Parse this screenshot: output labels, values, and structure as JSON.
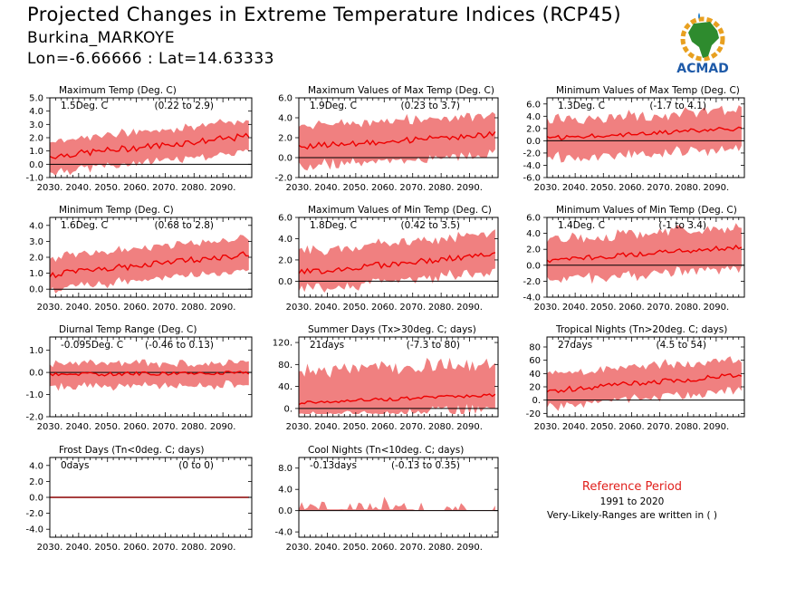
{
  "header": {
    "title": "Projected Changes in Extreme Temperature Indices (RCP45)",
    "station": "Burkina_MARKOYE",
    "coords": "Lon=-6.66666 : Lat=14.63333"
  },
  "logo": {
    "text": "ACMAD",
    "icon": "africa-map-logo-icon"
  },
  "reference": {
    "title": "Reference Period",
    "years": "1991 to 2020",
    "note": "Very-Likely-Ranges are written in ( )"
  },
  "colors": {
    "band": "#f08080",
    "line": "#ee0000",
    "zero": "#000000",
    "frost_line": "#8b0000",
    "ref_title": "#e0201c"
  },
  "chart_data": [
    {
      "type": "area",
      "title": "Maximum Temp (Deg. C)",
      "value_label": "1.5Deg. C",
      "range_label": "(0.22 to 2.9)",
      "x": [
        2030,
        2100
      ],
      "ylim": [
        -1.0,
        5.0
      ],
      "yticks": [
        -1,
        0,
        1,
        2,
        3,
        4,
        5
      ],
      "ytick_labels": [
        "-1.0",
        "0.0",
        "1.0",
        "2.0",
        "3.0",
        "4.0",
        "5.0"
      ],
      "trend_start": 0.6,
      "trend_end": 2.1,
      "noise": 0.25,
      "band_low": 1.0,
      "band_high": 1.0,
      "band_noise": 0.35,
      "floor": null
    },
    {
      "type": "area",
      "title": "Maximum Values of Max Temp (Deg. C)",
      "value_label": "1.9Deg. C",
      "range_label": "(0.23 to 3.7)",
      "x": [
        2030,
        2100
      ],
      "ylim": [
        -2.0,
        6.0
      ],
      "yticks": [
        -2,
        0,
        2,
        4,
        6
      ],
      "ytick_labels": [
        "-2.0",
        "0.0",
        "2.0",
        "4.0",
        "6.0"
      ],
      "trend_start": 1.1,
      "trend_end": 2.3,
      "noise": 0.3,
      "band_low": 1.6,
      "band_high": 1.6,
      "band_noise": 0.8,
      "floor": null
    },
    {
      "type": "area",
      "title": "Minimum Values of Max Temp (Deg. C)",
      "value_label": "1.3Deg. C",
      "range_label": "(-1.7 to 4.1)",
      "x": [
        2030,
        2100
      ],
      "ylim": [
        -6.0,
        7.0
      ],
      "yticks": [
        -6,
        -4,
        -2,
        0,
        2,
        4,
        6
      ],
      "ytick_labels": [
        "-6.0",
        "-4.0",
        "-2.0",
        "0.0",
        "2.0",
        "4.0",
        "6.0"
      ],
      "trend_start": 0.4,
      "trend_end": 2.0,
      "noise": 0.35,
      "band_low": 2.5,
      "band_high": 2.2,
      "band_noise": 1.6,
      "floor": null
    },
    {
      "type": "area",
      "title": "Minimum Temp (Deg. C)",
      "value_label": "1.6Deg. C",
      "range_label": "(0.68 to 2.8)",
      "x": [
        2030,
        2100
      ],
      "ylim": [
        -0.5,
        4.5
      ],
      "yticks": [
        0,
        1,
        2,
        3,
        4
      ],
      "ytick_labels": [
        "0.0",
        "1.0",
        "2.0",
        "3.0",
        "4.0"
      ],
      "trend_start": 0.9,
      "trend_end": 2.2,
      "noise": 0.2,
      "band_low": 0.8,
      "band_high": 0.9,
      "band_noise": 0.3,
      "floor": null
    },
    {
      "type": "area",
      "title": "Maximum Values of Min Temp (Deg. C)",
      "value_label": "1.8Deg. C",
      "range_label": "(0.42 to 3.5)",
      "x": [
        2030,
        2100
      ],
      "ylim": [
        -1.5,
        6.0
      ],
      "yticks": [
        0,
        2,
        4,
        6
      ],
      "ytick_labels": [
        "0.0",
        "2.0",
        "4.0",
        "6.0"
      ],
      "trend_start": 0.8,
      "trend_end": 2.5,
      "noise": 0.3,
      "band_low": 1.3,
      "band_high": 1.6,
      "band_noise": 0.7,
      "floor": null
    },
    {
      "type": "area",
      "title": "Minimum Values of Min Temp (Deg. C)",
      "value_label": "1.4Deg. C",
      "range_label": "(-1 to 3.4)",
      "x": [
        2030,
        2100
      ],
      "ylim": [
        -4.0,
        6.0
      ],
      "yticks": [
        -4,
        -2,
        0,
        2,
        4,
        6
      ],
      "ytick_labels": [
        "-4.0",
        "-2.0",
        "0.0",
        "2.0",
        "4.0",
        "6.0"
      ],
      "trend_start": 0.6,
      "trend_end": 2.3,
      "noise": 0.3,
      "band_low": 2.0,
      "band_high": 2.0,
      "band_noise": 1.1,
      "floor": null
    },
    {
      "type": "area",
      "title": "Diurnal Temp Range (Deg. C)",
      "value_label": "-0.095Deg. C",
      "range_label": "(-0.46 to 0.13)",
      "x": [
        2030,
        2100
      ],
      "ylim": [
        -2.0,
        1.6
      ],
      "yticks": [
        -2,
        -1,
        0,
        1
      ],
      "ytick_labels": [
        "-2.0",
        "-1.0",
        "0.0",
        "1.0"
      ],
      "trend_start": -0.1,
      "trend_end": 0.0,
      "noise": 0.08,
      "band_low": 0.4,
      "band_high": 0.3,
      "band_noise": 0.3,
      "floor": null
    },
    {
      "type": "area",
      "title": "Summer Days (Tx>30deg. C; days)",
      "value_label": "21days",
      "range_label": "(-7.3 to 80)",
      "x": [
        2030,
        2100
      ],
      "ylim": [
        -15,
        130
      ],
      "yticks": [
        0,
        40,
        80,
        120
      ],
      "ytick_labels": [
        "0.",
        "40.",
        "80.",
        "120."
      ],
      "trend_start": 10,
      "trend_end": 25,
      "noise": 3,
      "band_low": 15,
      "band_high": 45,
      "band_noise": 25,
      "floor": -10
    },
    {
      "type": "area",
      "title": "Tropical Nights (Tn>20deg. C; days)",
      "value_label": "27days",
      "range_label": "(4.5 to 54)",
      "x": [
        2030,
        2100
      ],
      "ylim": [
        -25,
        95
      ],
      "yticks": [
        -20,
        0,
        20,
        40,
        60,
        80
      ],
      "ytick_labels": [
        "-20",
        "0.",
        "20",
        "40",
        "60",
        "80"
      ],
      "trend_start": 14,
      "trend_end": 38,
      "noise": 4,
      "band_low": 18,
      "band_high": 20,
      "band_noise": 10,
      "floor": null
    },
    {
      "type": "area",
      "title": "Frost Days (Tn<0deg. C; days)",
      "value_label": "0days",
      "range_label": "(0 to 0)",
      "x": [
        2030,
        2100
      ],
      "ylim": [
        -5.0,
        5.0
      ],
      "yticks": [
        -4,
        -2,
        0,
        2,
        4
      ],
      "ytick_labels": [
        "-4.0",
        "-2.0",
        "0.0",
        "2.0",
        "4.0"
      ],
      "trend_start": 0,
      "trend_end": 0,
      "noise": 0,
      "band_low": 0,
      "band_high": 0,
      "band_noise": 0,
      "floor": null
    },
    {
      "type": "area",
      "title": "Cool Nights (Tn<10deg. C; days)",
      "value_label": "-0.13days",
      "range_label": "(-0.13 to 0.35)",
      "x": [
        2030,
        2100
      ],
      "ylim": [
        -5.0,
        10.0
      ],
      "yticks": [
        -4,
        0,
        4,
        8
      ],
      "ytick_labels": [
        "-4.0",
        "0.0",
        "4.0",
        "8.0"
      ],
      "trend_start": -0.1,
      "trend_end": -0.1,
      "noise": 0.02,
      "band_low": 0.1,
      "band_high": 0.3,
      "band_noise": 0.4,
      "floor": null,
      "sparse": true
    }
  ],
  "xtick_labels": [
    "2030.",
    "2040.",
    "2050.",
    "2060.",
    "2070.",
    "2080.",
    "2090."
  ]
}
